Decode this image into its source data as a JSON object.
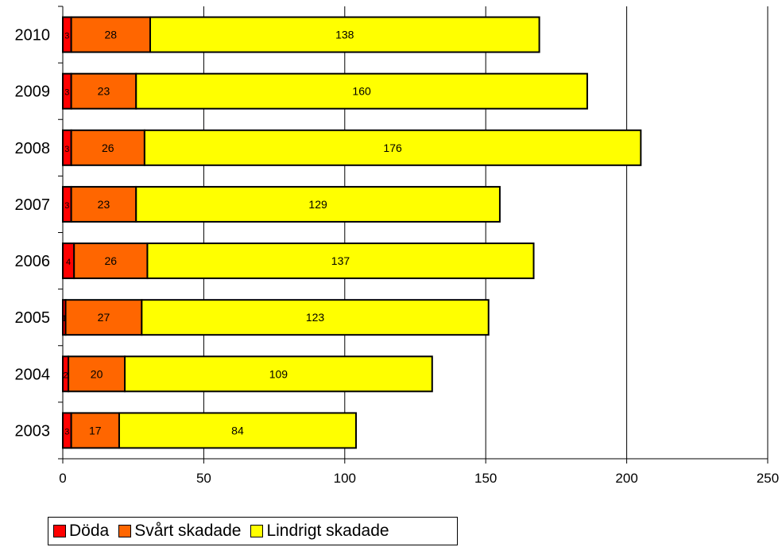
{
  "chart_data": {
    "type": "bar",
    "orientation": "horizontal",
    "stacked": true,
    "categories": [
      "2010",
      "2009",
      "2008",
      "2007",
      "2006",
      "2005",
      "2004",
      "2003"
    ],
    "series": [
      {
        "name": "Döda",
        "color": "#ff0000",
        "values": [
          3,
          3,
          3,
          3,
          4,
          1,
          2,
          3
        ]
      },
      {
        "name": "Svårt skadade",
        "color": "#ff6600",
        "values": [
          28,
          23,
          26,
          23,
          26,
          27,
          20,
          17
        ]
      },
      {
        "name": "Lindrigt skadade",
        "color": "#ffff00",
        "values": [
          138,
          160,
          176,
          129,
          137,
          123,
          109,
          84
        ]
      }
    ],
    "xlim": [
      0,
      250
    ],
    "xticks": [
      "0",
      "50",
      "100",
      "150",
      "200",
      "250"
    ],
    "grid": "vertical",
    "legend_position": "bottom-left"
  }
}
